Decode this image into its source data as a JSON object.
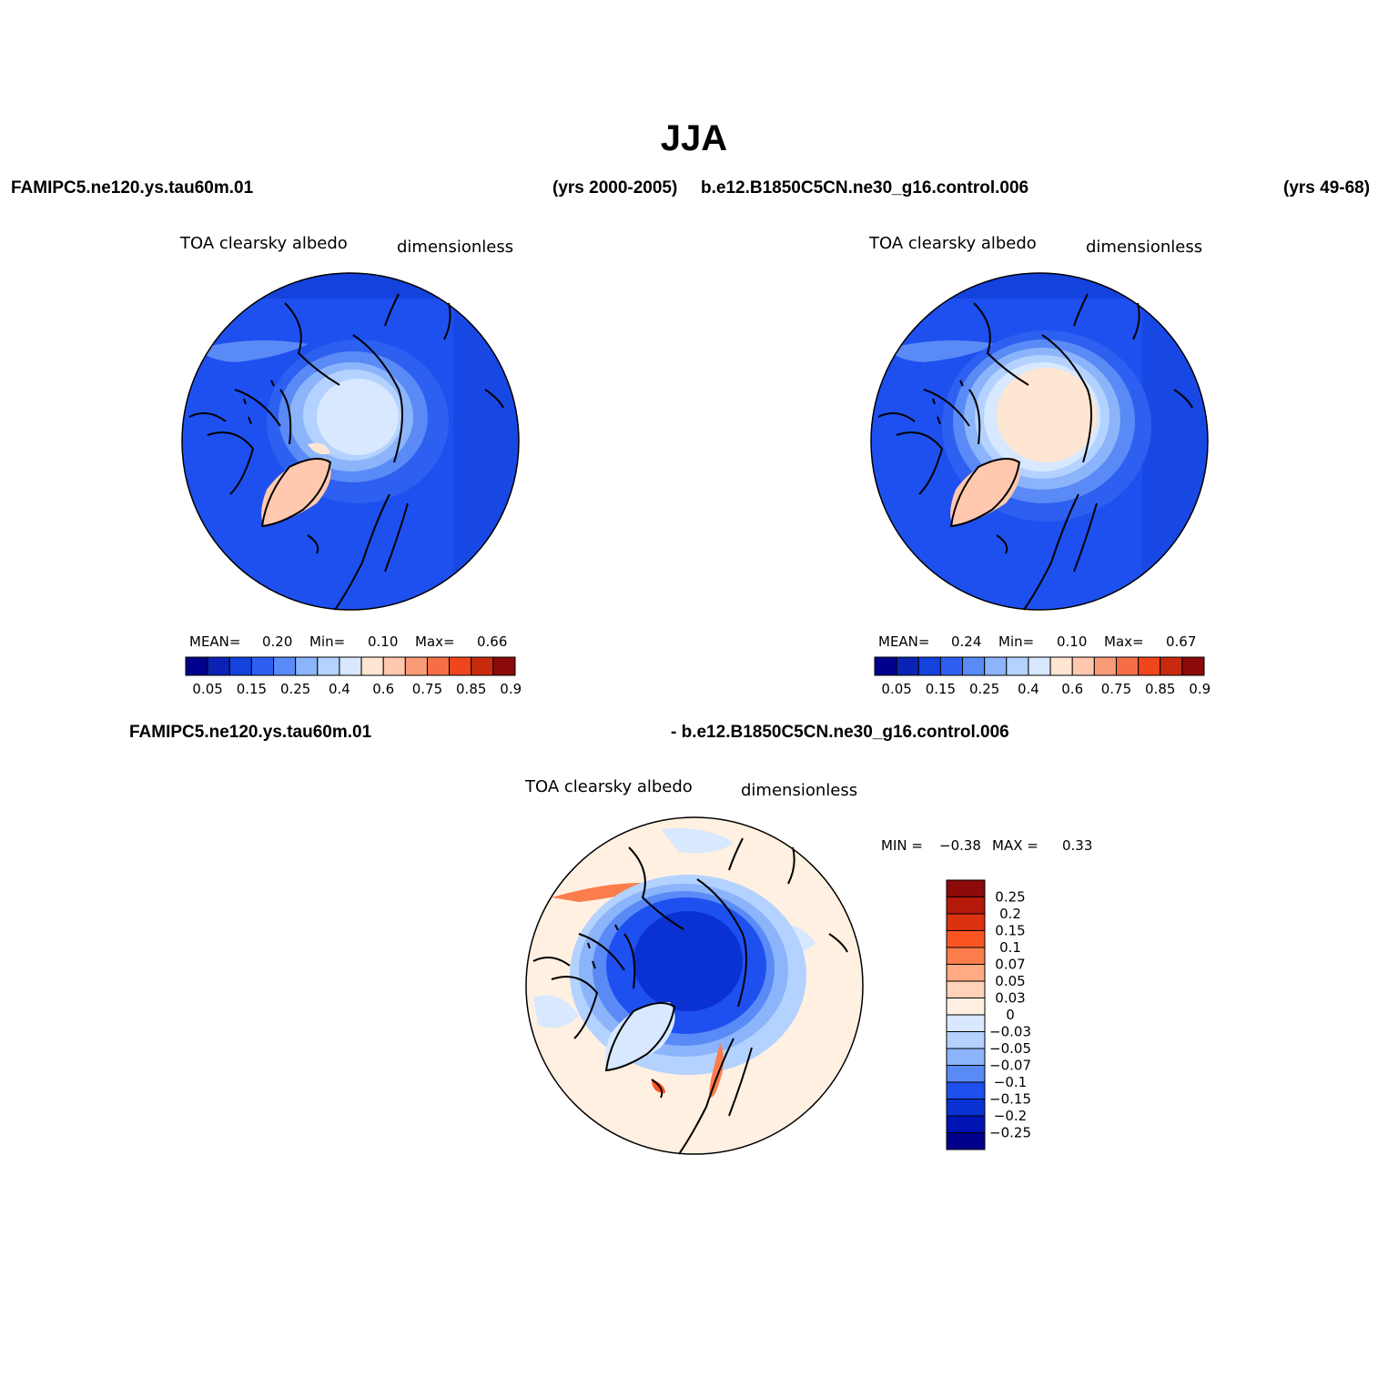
{
  "title": "JJA",
  "header": {
    "case1": "FAMIPC5.ne120.ys.tau60m.01",
    "case1_years": "(yrs 2000-2005)",
    "case2": "b.e12.B1850C5CN.ne30_g16.control.006",
    "case2_years": "(yrs 49-68)"
  },
  "panels": [
    {
      "variable": "TOA clearsky albedo",
      "units": "dimensionless",
      "mean_label": "MEAN=",
      "mean": "0.20",
      "min_label": "Min=",
      "min": "0.10",
      "max_label": "Max=",
      "max": "0.66"
    },
    {
      "variable": "TOA clearsky albedo",
      "units": "dimensionless",
      "mean_label": "MEAN=",
      "mean": "0.24",
      "min_label": "Min=",
      "min": "0.10",
      "max_label": "Max=",
      "max": "0.67"
    }
  ],
  "diff": {
    "case_left": "FAMIPC5.ne120.ys.tau60m.01",
    "case_right": "- b.e12.B1850C5CN.ne30_g16.control.006",
    "variable": "TOA clearsky albedo",
    "units": "dimensionless",
    "min_label": "MIN =",
    "min": "−0.38",
    "max_label": "MAX =",
    "max": "0.33"
  },
  "chart_data": {
    "type": "heatmap",
    "projection": "north polar stereographic",
    "abs_colorbar": {
      "labels": [
        "0.05",
        "0.15",
        "0.25",
        "0.4",
        "0.6",
        "0.75",
        "0.85",
        "0.95"
      ],
      "colors": [
        "#00008c",
        "#0a23b4",
        "#1442dc",
        "#2d5ff0",
        "#5a8af5",
        "#8cb4fa",
        "#b4d2ff",
        "#d7e8ff",
        "#ffe6d2",
        "#ffc8af",
        "#fa9b78",
        "#f56e46",
        "#f0461e",
        "#c82a0f",
        "#8c0a0a"
      ]
    },
    "diff_colorbar": {
      "labels": [
        "0.25",
        "0.2",
        "0.15",
        "0.1",
        "0.07",
        "0.05",
        "0.03",
        "0",
        "−0.03",
        "−0.05",
        "−0.07",
        "−0.1",
        "−0.15",
        "−0.2",
        "−0.25"
      ],
      "colors": [
        "#8c0a0a",
        "#b4190a",
        "#dc320f",
        "#fa5523",
        "#fa7d4b",
        "#ffaa82",
        "#ffd2b9",
        "#fff0e1",
        "#d7e8ff",
        "#b4d2ff",
        "#8cb4fa",
        "#5a8af5",
        "#1e50f0",
        "#0a32d2",
        "#0014b4",
        "#00008c"
      ]
    }
  }
}
